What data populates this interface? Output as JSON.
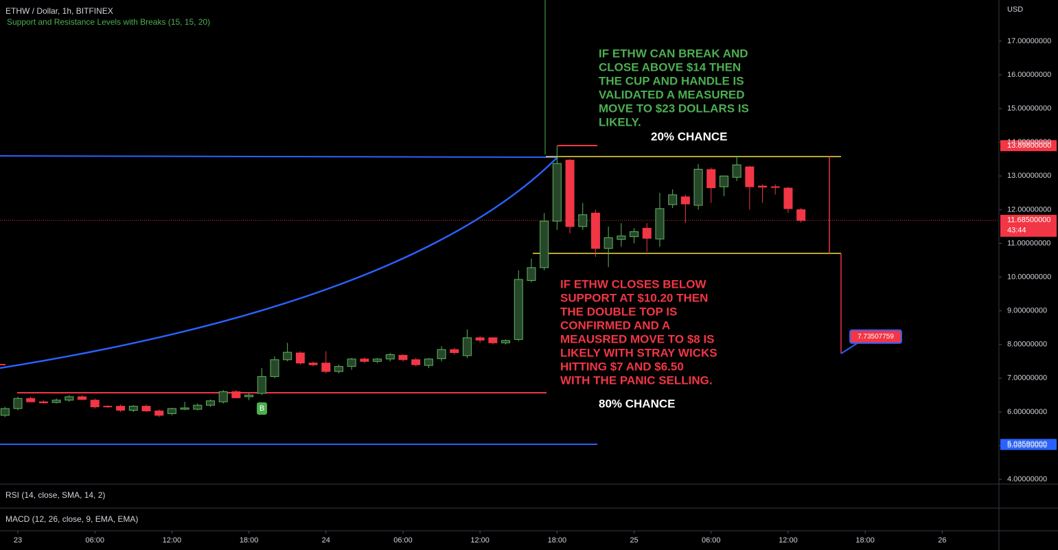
{
  "header": {
    "title": "ETHW / Dollar, 1h, BITFINEX",
    "indicator": "Support and Resistance Levels with Breaks (15, 15, 20)",
    "currency": "USD"
  },
  "chart_data": {
    "type": "candlestick",
    "up_color": "#27472a",
    "up_border": "#5cb85c",
    "down_color": "#f23645",
    "x": [
      -1,
      0,
      1,
      2,
      3,
      4,
      5,
      6,
      7,
      8,
      9,
      10,
      11,
      12,
      13,
      14,
      15,
      16,
      17,
      18,
      19,
      20,
      21,
      22,
      23,
      24,
      25,
      26,
      27,
      28,
      29,
      30,
      31,
      32,
      33,
      34,
      35,
      36,
      37,
      38,
      39,
      40,
      41,
      42,
      43,
      44,
      45,
      46,
      47,
      48,
      49,
      50,
      51,
      52,
      53,
      54,
      55,
      56,
      57,
      58,
      59,
      60,
      61
    ],
    "open": [
      5.9,
      6.1,
      6.4,
      6.3,
      6.28,
      6.35,
      6.45,
      6.35,
      6.17,
      6.17,
      6.05,
      6.17,
      6.03,
      5.95,
      6.08,
      6.08,
      6.2,
      6.3,
      6.6,
      6.45,
      6.55,
      7.05,
      7.55,
      7.75,
      7.45,
      7.45,
      7.2,
      7.35,
      7.57,
      7.5,
      7.57,
      7.68,
      7.55,
      7.38,
      7.58,
      7.85,
      7.67,
      8.2,
      8.2,
      8.05,
      8.15,
      9.9,
      10.28,
      11.66,
      13.47,
      11.5,
      11.9,
      10.85,
      11.12,
      11.2,
      11.45,
      11.13,
      12.15,
      12.38,
      12.13,
      13.19,
      12.68,
      12.96,
      13.27,
      12.7,
      12.68,
      12.64,
      12.0
    ],
    "high": [
      6.15,
      6.45,
      6.45,
      6.35,
      6.4,
      6.5,
      6.5,
      6.4,
      6.2,
      6.22,
      6.2,
      6.22,
      6.08,
      6.12,
      6.3,
      6.25,
      6.37,
      6.65,
      6.65,
      6.55,
      7.3,
      7.65,
      8.05,
      7.8,
      7.5,
      7.8,
      7.4,
      7.6,
      7.62,
      7.6,
      7.75,
      7.72,
      7.6,
      7.6,
      7.95,
      7.9,
      8.45,
      8.25,
      8.22,
      8.15,
      10.2,
      10.55,
      11.9,
      13.9,
      13.5,
      12.2,
      12.0,
      11.5,
      11.6,
      11.45,
      11.6,
      12.5,
      12.6,
      12.45,
      13.35,
      13.25,
      13.0,
      13.6,
      13.3,
      12.75,
      12.75,
      12.68,
      12.05
    ],
    "low": [
      5.85,
      6.05,
      6.3,
      6.25,
      6.25,
      6.3,
      6.35,
      6.1,
      6.12,
      6.0,
      6.0,
      6.0,
      5.85,
      5.9,
      6.05,
      6.05,
      6.15,
      6.25,
      6.4,
      6.35,
      6.5,
      7.0,
      7.5,
      7.4,
      7.35,
      7.15,
      7.15,
      7.25,
      7.45,
      7.45,
      7.5,
      7.5,
      7.35,
      7.3,
      7.5,
      7.7,
      7.6,
      8.05,
      8.0,
      8.0,
      8.1,
      9.85,
      10.2,
      11.4,
      11.3,
      11.4,
      10.6,
      10.3,
      10.9,
      11.0,
      10.75,
      10.9,
      12.05,
      11.6,
      12.0,
      12.2,
      12.4,
      12.85,
      12.0,
      12.2,
      12.45,
      11.9,
      11.62
    ],
    "close": [
      6.1,
      6.4,
      6.3,
      6.27,
      6.35,
      6.45,
      6.37,
      6.15,
      6.15,
      6.05,
      6.17,
      6.03,
      5.9,
      6.1,
      6.12,
      6.2,
      6.33,
      6.6,
      6.42,
      6.5,
      7.05,
      7.55,
      7.77,
      7.45,
      7.4,
      7.2,
      7.35,
      7.57,
      7.5,
      7.57,
      7.7,
      7.55,
      7.4,
      7.57,
      7.85,
      7.76,
      8.2,
      8.13,
      8.05,
      8.12,
      9.93,
      10.28,
      11.66,
      13.37,
      11.5,
      11.85,
      10.85,
      11.17,
      11.22,
      11.35,
      11.15,
      12.03,
      12.44,
      12.17,
      13.2,
      12.65,
      13.0,
      13.33,
      12.68,
      12.67,
      12.66,
      12.03,
      11.68
    ],
    "xlim": [
      -1.39,
      76.42
    ],
    "ylim": [
      3.86,
      18.22
    ],
    "xticks": [
      {
        "value": 0,
        "label": "23"
      },
      {
        "value": 6,
        "label": "06:00"
      },
      {
        "value": 12,
        "label": "12:00"
      },
      {
        "value": 18,
        "label": "18:00"
      },
      24,
      {
        "value": 30,
        "label": "06:00"
      },
      {
        "value": 36,
        "label": "12:00"
      },
      {
        "value": 42,
        "label": "18:00"
      },
      {
        "value": 48,
        "label": "25"
      },
      {
        "value": 54,
        "label": "06:00"
      },
      {
        "value": 60,
        "label": "12:00"
      },
      {
        "value": 66,
        "label": "18:00"
      },
      {
        "value": 72,
        "label": "26"
      }
    ],
    "yticks": [
      {
        "value": 4,
        "label": "4.00000000"
      },
      {
        "value": 5,
        "label": "5.00000000"
      },
      {
        "value": 6,
        "label": "6.00000000"
      },
      {
        "value": 7,
        "label": "7.00000000"
      },
      {
        "value": 8,
        "label": "8.00000000"
      },
      {
        "value": 9,
        "label": "9.00000000"
      },
      {
        "value": 10,
        "label": "10.00000000"
      },
      {
        "value": 11,
        "label": "11.00000000"
      },
      {
        "value": 12,
        "label": "12.00000000"
      },
      {
        "value": 13,
        "label": "13.00000000"
      },
      {
        "value": 14,
        "label": "14.00000000"
      },
      {
        "value": 15,
        "label": "15.00000000"
      },
      {
        "value": 16,
        "label": "16.00000000"
      },
      {
        "value": 17,
        "label": "17.00000000"
      }
    ],
    "price_tags": [
      {
        "value": 13.898,
        "label": "13.89800000",
        "color": "#f23645"
      },
      {
        "value": 11.685,
        "label": "11.68500000",
        "color": "#f23645"
      },
      {
        "value": 5.0359,
        "label": "5.03590000",
        "color": "#2962ff"
      }
    ],
    "countdown": "43:44",
    "target_price": 7.73507759,
    "break_marker": "B",
    "annotations": [
      {
        "lines": [
          "IF ETHW CAN BREAK AND",
          "CLOSE ABOVE $14 THEN",
          "THE CUP AND HANDLE IS",
          "VALIDATED A MEASURED",
          "MOVE TO $23 DOLLARS IS",
          "LIKELY."
        ],
        "color": "#4caf50"
      },
      {
        "lines": [
          "IF ETHW CLOSES BELOW",
          "SUPPORT AT $10.20 THEN",
          "THE DOUBLE TOP IS",
          "CONFIRMED AND A",
          "MEAUSRED MOVE TO $8 IS",
          "LIKELY WITH STRAY WICKS",
          "HITTING $7 AND $6.50",
          "WITH THE PANIC SELLING."
        ],
        "color": "#f23645"
      }
    ],
    "chance_up": "20% CHANCE",
    "chance_down": "80% CHANCE"
  },
  "panes": {
    "rsi": "RSI (14, close, SMA, 14, 2)",
    "macd": "MACD (12, 26, close, 9, EMA, EMA)"
  }
}
